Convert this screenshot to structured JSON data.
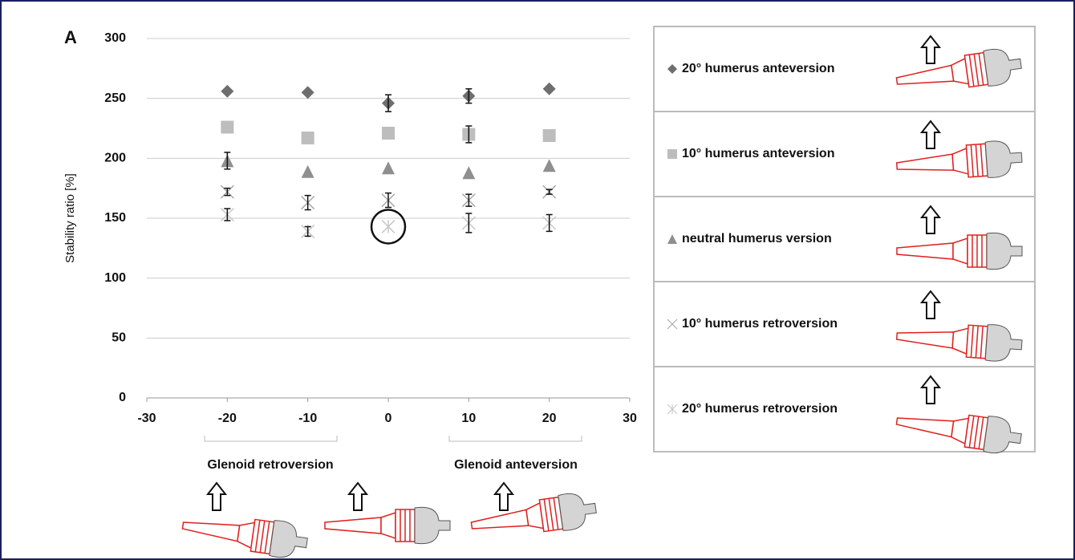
{
  "chart_data": {
    "type": "scatter",
    "panel_label": "A",
    "ylabel": "Stability ratio [%]",
    "annotations": [
      "Glenoid retroversion",
      "Glenoid anteversion"
    ],
    "x": [
      -20,
      -10,
      0,
      10,
      20
    ],
    "xlim": [
      -30,
      30
    ],
    "xticks": [
      -30,
      -20,
      -10,
      0,
      10,
      20,
      30
    ],
    "ylim": [
      0,
      300
    ],
    "yticks": [
      0,
      50,
      100,
      150,
      200,
      250,
      300
    ],
    "grid": true,
    "series": [
      {
        "name": "20° humerus anteversion",
        "color": "#6e6e6e",
        "marker": "diamond",
        "values": [
          256,
          255,
          246,
          252,
          258
        ],
        "errors": [
          null,
          null,
          7,
          6,
          null
        ]
      },
      {
        "name": "10° humerus anteversion",
        "color": "#bdbdbd",
        "marker": "square",
        "values": [
          226,
          217,
          221,
          220,
          219
        ],
        "errors": [
          null,
          null,
          null,
          7,
          null
        ]
      },
      {
        "name": "neutral humerus version",
        "color": "#8f8f8f",
        "marker": "triangle",
        "values": [
          198,
          189,
          192,
          188,
          194
        ],
        "errors": [
          7,
          null,
          null,
          null,
          null
        ]
      },
      {
        "name": "10° humerus retroversion",
        "color": "#a8a8a8",
        "marker": "x",
        "values": [
          172,
          163,
          165,
          165,
          172
        ],
        "errors": [
          3,
          6,
          6,
          5,
          2
        ]
      },
      {
        "name": "20° humerus retroversion",
        "color": "#c8c8c8",
        "marker": "star",
        "values": [
          153,
          139,
          143,
          146,
          146
        ],
        "errors": [
          5,
          4,
          null,
          8,
          7
        ]
      }
    ]
  }
}
